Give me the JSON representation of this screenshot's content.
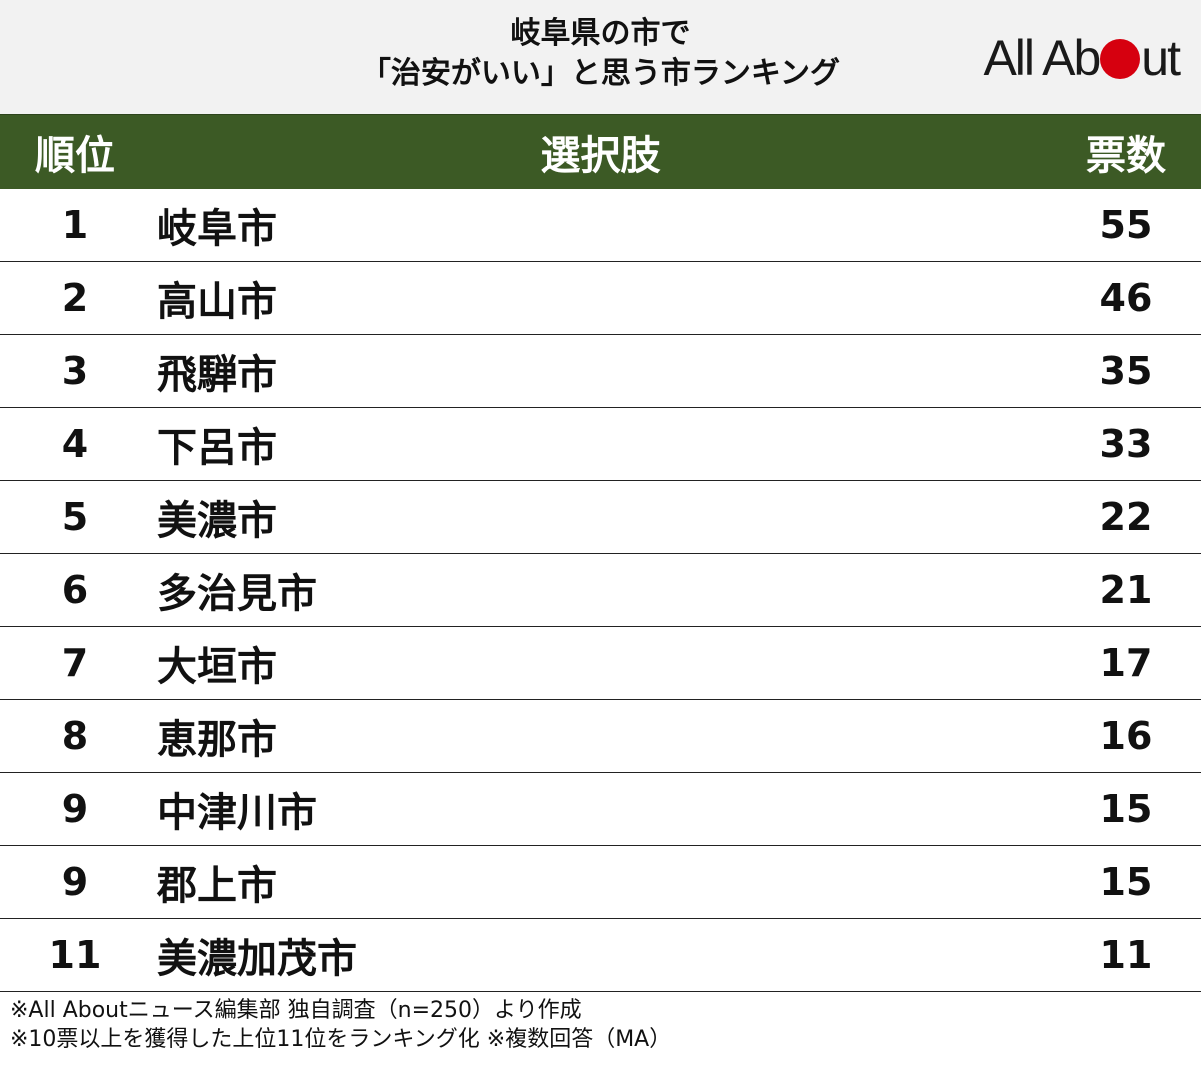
{
  "title": {
    "line1": "岐阜県の市で",
    "line2": "「治安がいい」と思う市ランキング"
  },
  "logo": {
    "left": "All Ab",
    "right": "ut",
    "dot_color": "#d6000f"
  },
  "header": {
    "rank": "順位",
    "choice": "選択肢",
    "votes": "票数",
    "bg_color": "#3c5a25"
  },
  "rows": [
    {
      "rank": "1",
      "name": "岐阜市",
      "votes": "55"
    },
    {
      "rank": "2",
      "name": "高山市",
      "votes": "46"
    },
    {
      "rank": "3",
      "name": "飛騨市",
      "votes": "35"
    },
    {
      "rank": "4",
      "name": "下呂市",
      "votes": "33"
    },
    {
      "rank": "5",
      "name": "美濃市",
      "votes": "22"
    },
    {
      "rank": "6",
      "name": "多治見市",
      "votes": "21"
    },
    {
      "rank": "7",
      "name": "大垣市",
      "votes": "17"
    },
    {
      "rank": "8",
      "name": "恵那市",
      "votes": "16"
    },
    {
      "rank": "9",
      "name": "中津川市",
      "votes": "15"
    },
    {
      "rank": "9",
      "name": "郡上市",
      "votes": "15"
    },
    {
      "rank": "11",
      "name": "美濃加茂市",
      "votes": "11"
    }
  ],
  "footnotes": {
    "line1": "※All Aboutニュース編集部 独自調査（n=250）より作成",
    "line2": "※10票以上を獲得した上位11位をランキング化 ※複数回答（MA）"
  }
}
